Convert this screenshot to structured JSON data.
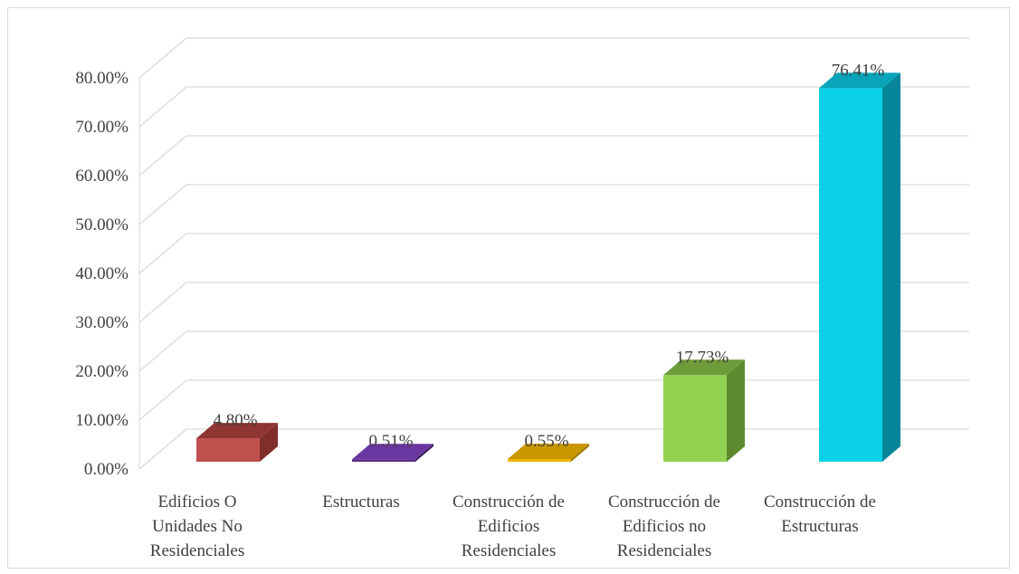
{
  "chart_data": {
    "type": "bar",
    "style": "3d-column",
    "categories": [
      [
        "Edificios O",
        "Unidades No",
        "Residenciales"
      ],
      [
        "Estructuras"
      ],
      [
        "Construcción de",
        "Edificios",
        "Residenciales"
      ],
      [
        "Construcción de",
        "Edificios no",
        "Residenciales"
      ],
      [
        "Construcción de",
        "Estructuras"
      ]
    ],
    "values": [
      4.8,
      0.51,
      0.55,
      17.73,
      76.41
    ],
    "data_labels": [
      "4.80%",
      "0.51%",
      "0.55%",
      "17.73%",
      "76.41%"
    ],
    "colors": [
      {
        "front": "#c0504d",
        "side": "#7f2e2c",
        "top": "#8f3633"
      },
      {
        "front": "#5a2d82",
        "side": "#3b1c58",
        "top": "#6a36a0"
      },
      {
        "front": "#f0b400",
        "side": "#a07800",
        "top": "#c99700"
      },
      {
        "front": "#92d050",
        "side": "#5e8a2f",
        "top": "#6e9c3a"
      },
      {
        "front": "#0bd1e8",
        "side": "#07869a",
        "top": "#08a5ba"
      }
    ],
    "ylim": [
      0,
      80
    ],
    "y_ticks": [
      0,
      10,
      20,
      30,
      40,
      50,
      60,
      70,
      80
    ],
    "y_tick_labels": [
      "0.00%",
      "10.00%",
      "20.00%",
      "30.00%",
      "40.00%",
      "50.00%",
      "60.00%",
      "70.00%",
      "80.00%"
    ],
    "grid": true,
    "legend": "none",
    "title": "",
    "xlabel": "",
    "ylabel": ""
  }
}
